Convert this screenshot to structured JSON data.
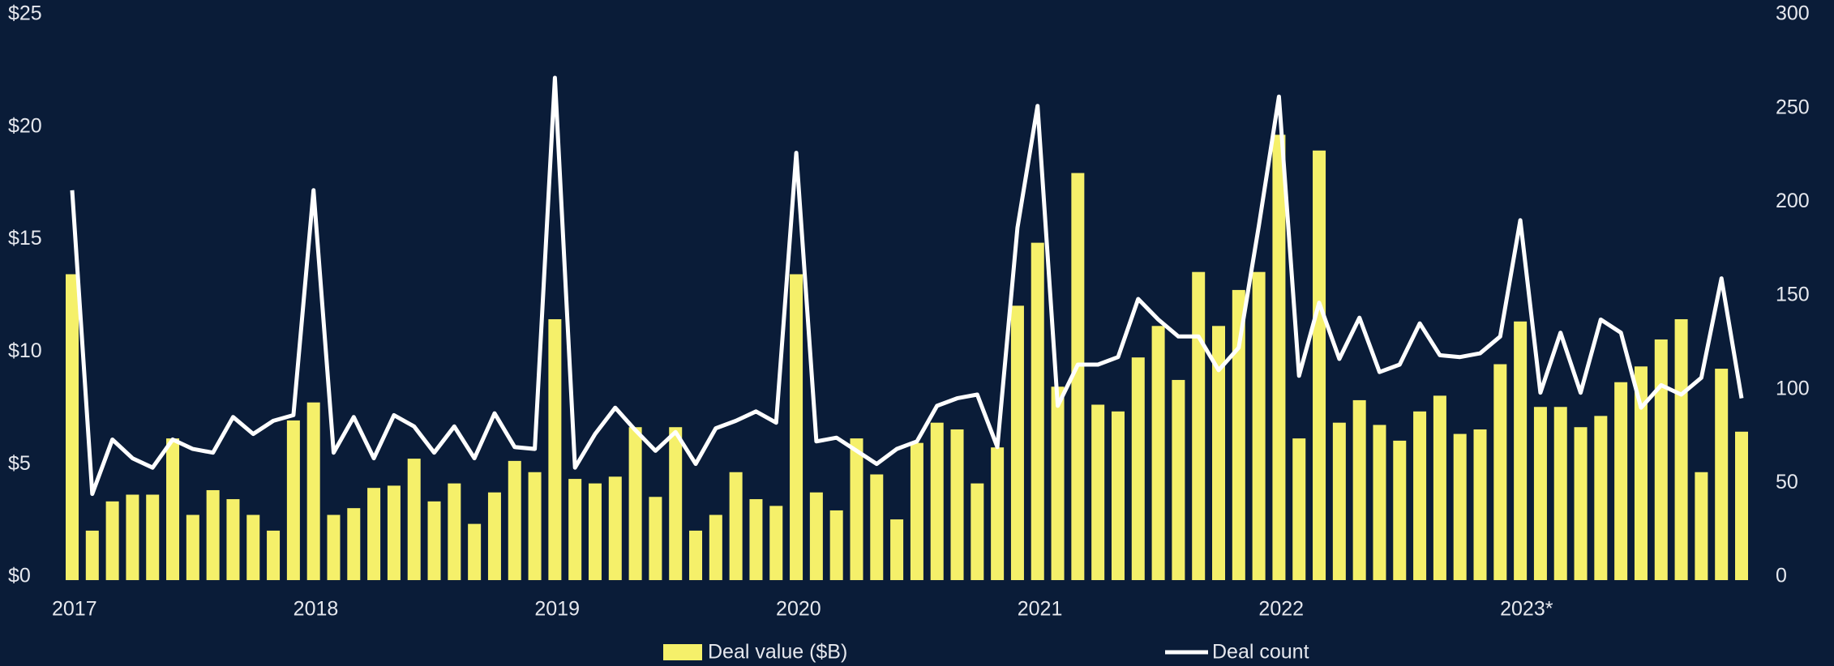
{
  "chart_data": {
    "type": "bar",
    "categories": [
      "2017",
      null,
      null,
      null,
      null,
      null,
      null,
      null,
      null,
      null,
      null,
      null,
      "2018",
      null,
      null,
      null,
      null,
      null,
      null,
      null,
      null,
      null,
      null,
      null,
      "2019",
      null,
      null,
      null,
      null,
      null,
      null,
      null,
      null,
      null,
      null,
      null,
      "2020",
      null,
      null,
      null,
      null,
      null,
      null,
      null,
      null,
      null,
      null,
      null,
      "2021",
      null,
      null,
      null,
      null,
      null,
      null,
      null,
      null,
      null,
      null,
      null,
      "2022",
      null,
      null,
      null,
      null,
      null,
      null,
      null,
      null,
      null,
      null,
      null,
      "2023*",
      null,
      null,
      null,
      null,
      null,
      null,
      null,
      null,
      null,
      null,
      null
    ],
    "series": [
      {
        "name": "Deal value ($B)",
        "type": "bar",
        "color": "#f5f06a",
        "values": [
          13.6,
          2.2,
          3.5,
          3.8,
          3.8,
          6.3,
          2.9,
          4.0,
          3.6,
          2.9,
          2.2,
          7.1,
          7.9,
          2.9,
          3.2,
          4.1,
          4.2,
          5.4,
          3.5,
          4.3,
          2.5,
          3.9,
          5.3,
          4.8,
          11.6,
          4.5,
          4.3,
          4.6,
          6.8,
          3.7,
          6.8,
          2.2,
          2.9,
          4.8,
          3.6,
          3.3,
          13.6,
          3.9,
          3.1,
          6.3,
          4.7,
          2.7,
          6.1,
          7.0,
          6.7,
          4.3,
          5.9,
          12.2,
          15.0,
          8.6,
          18.1,
          7.8,
          7.5,
          9.9,
          11.3,
          8.9,
          13.7,
          11.3,
          12.9,
          13.7,
          19.8,
          6.3,
          19.1,
          7.0,
          8.0,
          6.9,
          6.2,
          7.5,
          8.2,
          6.5,
          6.7,
          9.6,
          11.5,
          7.7,
          7.7,
          6.8,
          7.3,
          8.8,
          9.5,
          10.7,
          11.6,
          4.8,
          9.4,
          6.6
        ]
      },
      {
        "name": "Deal count",
        "type": "line",
        "axis": "y2",
        "color": "#ffffff",
        "values": [
          208,
          46,
          75,
          65,
          60,
          75,
          70,
          68,
          87,
          78,
          85,
          88,
          208,
          68,
          87,
          65,
          88,
          82,
          68,
          82,
          65,
          89,
          71,
          70,
          268,
          60,
          78,
          92,
          80,
          69,
          79,
          62,
          81,
          85,
          90,
          84,
          228,
          74,
          76,
          69,
          62,
          70,
          74,
          93,
          97,
          99,
          71,
          188,
          253,
          93,
          115,
          115,
          119,
          150,
          139,
          130,
          130,
          112,
          124,
          189,
          258,
          109,
          148,
          118,
          140,
          111,
          115,
          137,
          120,
          119,
          121,
          130,
          192,
          100,
          132,
          100,
          139,
          132,
          92,
          104,
          99,
          108,
          161,
          97
        ]
      }
    ],
    "ylim": [
      0,
      25
    ],
    "yticks": [
      {
        "value": 0,
        "label": "$0"
      },
      {
        "value": 5,
        "label": "$5"
      },
      {
        "value": 10,
        "label": "$10"
      },
      {
        "value": 15,
        "label": "$15"
      },
      {
        "value": 20,
        "label": "$20"
      },
      {
        "value": 25,
        "label": "$25"
      }
    ],
    "y2lim": [
      0,
      300
    ],
    "y2ticks": [
      0,
      50,
      100,
      150,
      200,
      250,
      300
    ],
    "grid": false,
    "legend": "bottom"
  }
}
